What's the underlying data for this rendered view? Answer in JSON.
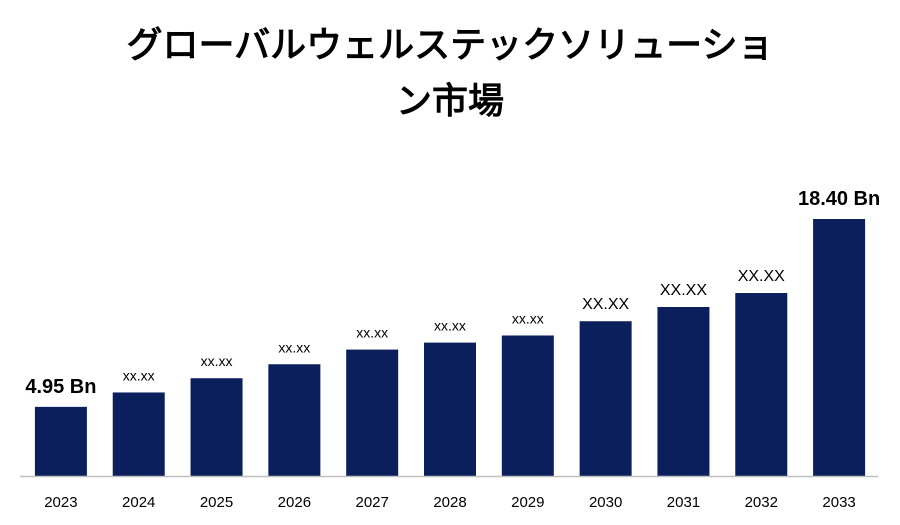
{
  "title_line1": "グローバルウェルステックソリューショ",
  "title_line2": "ン市場",
  "chart_data": {
    "type": "bar",
    "categories": [
      "2023",
      "2024",
      "2025",
      "2026",
      "2027",
      "2028",
      "2029",
      "2030",
      "2031",
      "2032",
      "2033"
    ],
    "values": [
      4.95,
      5.98,
      7.0,
      8.0,
      9.05,
      9.55,
      10.06,
      11.08,
      12.1,
      13.1,
      18.4
    ],
    "data_labels": [
      "4.95 Bn",
      "xx.xx",
      "xx.xx",
      "xx.xx",
      "xx.xx",
      "xx.xx",
      "xx.xx",
      "XX.XX",
      "XX.XX",
      "XX.XX",
      "18.40 Bn"
    ],
    "ylim": [
      0,
      18.4
    ],
    "bar_color": "#0a1f5c",
    "axis_color": "#bfbfbf",
    "grid": false
  }
}
